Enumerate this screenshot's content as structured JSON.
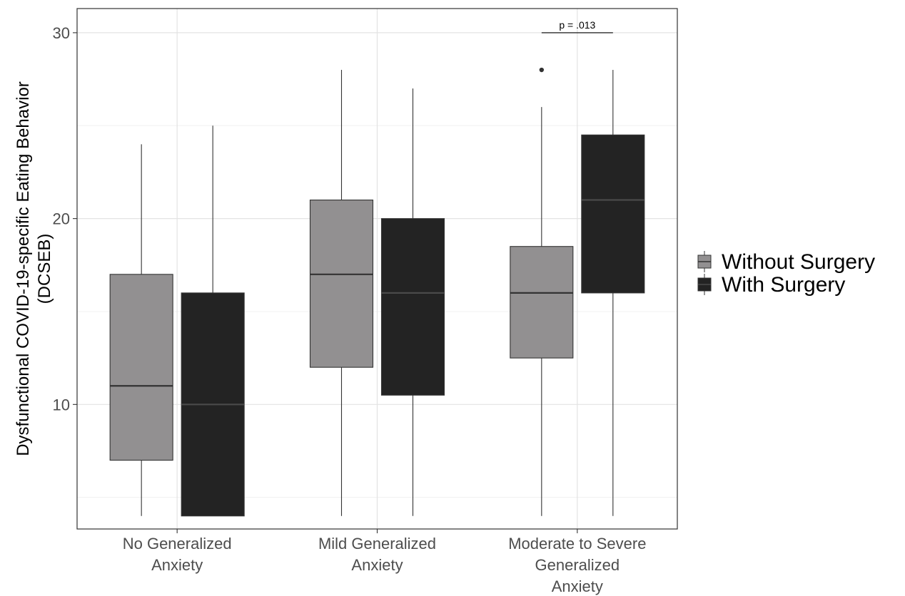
{
  "chart_data": {
    "type": "boxplot",
    "title": "",
    "xlabel": "",
    "ylabel_lines": [
      "Dysfunctional COVID-19-specific Eating Behavior",
      "(DCSEB)"
    ],
    "ylim": [
      3.3,
      31.3
    ],
    "yticks": [
      10,
      20,
      30
    ],
    "ytick_labels": [
      "10",
      "20",
      "30"
    ],
    "grid": true,
    "legend_position": "right",
    "categories": [
      {
        "lines": [
          "No Generalized",
          "Anxiety"
        ]
      },
      {
        "lines": [
          "Mild Generalized",
          "Anxiety"
        ]
      },
      {
        "lines": [
          "Moderate to Severe",
          "Generalized",
          "Anxiety"
        ]
      }
    ],
    "series": [
      {
        "name": "Without Surgery",
        "color": "#929091",
        "median_color": "#333333",
        "boxes": [
          {
            "min": 4,
            "q1": 7,
            "median": 11,
            "q3": 17,
            "max": 24,
            "outliers": []
          },
          {
            "min": 4,
            "q1": 12,
            "median": 17,
            "q3": 21,
            "max": 28,
            "outliers": []
          },
          {
            "min": 4,
            "q1": 12.5,
            "median": 16,
            "q3": 18.5,
            "max": 26,
            "outliers": [
              28
            ]
          }
        ]
      },
      {
        "name": "With Surgery",
        "color": "#232323",
        "median_color": "#4a4a4a",
        "boxes": [
          {
            "min": 4,
            "q1": 4,
            "median": 10,
            "q3": 16,
            "max": 25,
            "outliers": []
          },
          {
            "min": 4,
            "q1": 10.5,
            "median": 16,
            "q3": 20,
            "max": 27,
            "outliers": []
          },
          {
            "min": 4,
            "q1": 16,
            "median": 21,
            "q3": 24.5,
            "max": 28,
            "outliers": []
          }
        ]
      }
    ],
    "annotations": [
      {
        "text": "p = .013",
        "category_index": 2,
        "y": 30
      }
    ]
  }
}
